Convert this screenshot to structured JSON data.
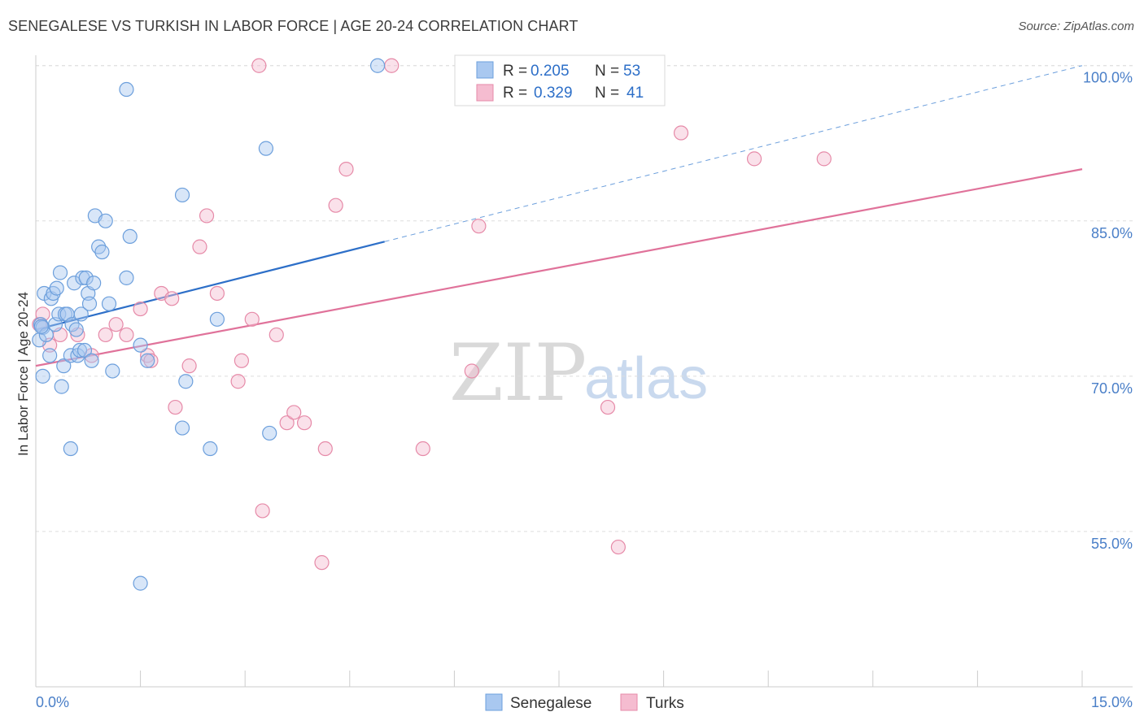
{
  "title": "SENEGALESE VS TURKISH IN LABOR FORCE | AGE 20-24 CORRELATION CHART",
  "source": "Source: ZipAtlas.com",
  "watermark": {
    "zip": "ZIP",
    "atlas": "atlas"
  },
  "colors": {
    "blue_fill": "#a9c8f0",
    "blue_stroke": "#6c9fdc",
    "blue_line": "#2d6fc8",
    "pink_fill": "#f5bcd0",
    "pink_stroke": "#e68aa8",
    "pink_line": "#e0729a",
    "tick_color": "#4a7fc8",
    "grid": "#dddddd"
  },
  "chart_data": {
    "type": "scatter",
    "xlabel": "",
    "ylabel": "In Labor Force | Age 20-24",
    "xlim": [
      0.0,
      15.0
    ],
    "ylim": [
      40.0,
      101.0
    ],
    "x_tick_labels": [
      "0.0%",
      "15.0%"
    ],
    "y_ticks": [
      55.0,
      70.0,
      85.0,
      100.0
    ],
    "y_tick_labels": [
      "55.0%",
      "70.0%",
      "85.0%",
      "100.0%"
    ],
    "grid": true,
    "legend": [
      {
        "series": "Senegalese",
        "r_label": "R =",
        "r_value": "0.205",
        "n_label": "N =",
        "n_value": "53"
      },
      {
        "series": "Turks",
        "r_label": "R =",
        "r_value": "0.329",
        "n_label": "N =",
        "n_value": "41"
      }
    ],
    "series": [
      {
        "name": "Senegalese",
        "trend": {
          "x0": 0.0,
          "y0": 74.5,
          "x1": 5.0,
          "y1": 83.0,
          "dash_x1": 15.0,
          "dash_y1": 100.0
        },
        "points": [
          [
            0.05,
            73.5
          ],
          [
            0.07,
            75
          ],
          [
            0.1,
            74.7
          ],
          [
            0.12,
            78
          ],
          [
            0.15,
            74
          ],
          [
            0.2,
            72
          ],
          [
            0.22,
            77.5
          ],
          [
            0.25,
            78
          ],
          [
            0.28,
            75
          ],
          [
            0.3,
            78.5
          ],
          [
            0.33,
            76
          ],
          [
            0.35,
            80
          ],
          [
            0.37,
            69
          ],
          [
            0.4,
            71
          ],
          [
            0.42,
            76
          ],
          [
            0.45,
            76
          ],
          [
            0.5,
            72
          ],
          [
            0.52,
            75
          ],
          [
            0.55,
            79
          ],
          [
            0.58,
            74.5
          ],
          [
            0.6,
            72
          ],
          [
            0.63,
            72.5
          ],
          [
            0.65,
            76
          ],
          [
            0.67,
            79.5
          ],
          [
            0.7,
            72.5
          ],
          [
            0.72,
            79.5
          ],
          [
            0.75,
            78
          ],
          [
            0.77,
            77
          ],
          [
            0.8,
            71.5
          ],
          [
            0.83,
            79
          ],
          [
            0.85,
            85.5
          ],
          [
            0.9,
            82.5
          ],
          [
            0.95,
            82
          ],
          [
            1.0,
            85
          ],
          [
            1.05,
            77
          ],
          [
            1.1,
            70.5
          ],
          [
            1.3,
            97.7
          ],
          [
            1.3,
            79.5
          ],
          [
            1.35,
            83.5
          ],
          [
            1.5,
            73
          ],
          [
            1.6,
            71.5
          ],
          [
            2.1,
            87.5
          ],
          [
            2.15,
            69.5
          ],
          [
            2.1,
            65
          ],
          [
            2.5,
            63
          ],
          [
            2.6,
            75.5
          ],
          [
            3.3,
            92
          ],
          [
            3.35,
            64.5
          ],
          [
            4.9,
            100
          ],
          [
            0.1,
            70
          ],
          [
            0.5,
            63
          ],
          [
            1.5,
            50
          ],
          [
            0.08,
            74.8
          ]
        ]
      },
      {
        "name": "Turks",
        "trend": {
          "x0": 0.0,
          "y0": 71.0,
          "x1": 15.0,
          "y1": 90.0
        },
        "points": [
          [
            0.05,
            75
          ],
          [
            0.1,
            76
          ],
          [
            0.2,
            73
          ],
          [
            0.35,
            74
          ],
          [
            0.6,
            74
          ],
          [
            0.8,
            72
          ],
          [
            1.0,
            74
          ],
          [
            1.15,
            75
          ],
          [
            1.3,
            74
          ],
          [
            1.5,
            76.5
          ],
          [
            1.6,
            72
          ],
          [
            1.65,
            71.5
          ],
          [
            1.8,
            78
          ],
          [
            1.95,
            77.5
          ],
          [
            2.0,
            67
          ],
          [
            2.2,
            71
          ],
          [
            2.35,
            82.5
          ],
          [
            2.45,
            85.5
          ],
          [
            2.6,
            78
          ],
          [
            2.9,
            69.5
          ],
          [
            2.95,
            71.5
          ],
          [
            3.1,
            75.5
          ],
          [
            3.2,
            100
          ],
          [
            3.25,
            57
          ],
          [
            3.45,
            74
          ],
          [
            3.6,
            65.5
          ],
          [
            3.7,
            66.5
          ],
          [
            3.85,
            65.5
          ],
          [
            4.1,
            52
          ],
          [
            4.15,
            63
          ],
          [
            4.3,
            86.5
          ],
          [
            4.45,
            90
          ],
          [
            5.1,
            100
          ],
          [
            5.55,
            63
          ],
          [
            6.25,
            70.5
          ],
          [
            6.35,
            84.5
          ],
          [
            8.35,
            53.5
          ],
          [
            8.2,
            67
          ],
          [
            9.25,
            93.5
          ],
          [
            10.3,
            91
          ],
          [
            11.3,
            91
          ]
        ]
      }
    ]
  }
}
